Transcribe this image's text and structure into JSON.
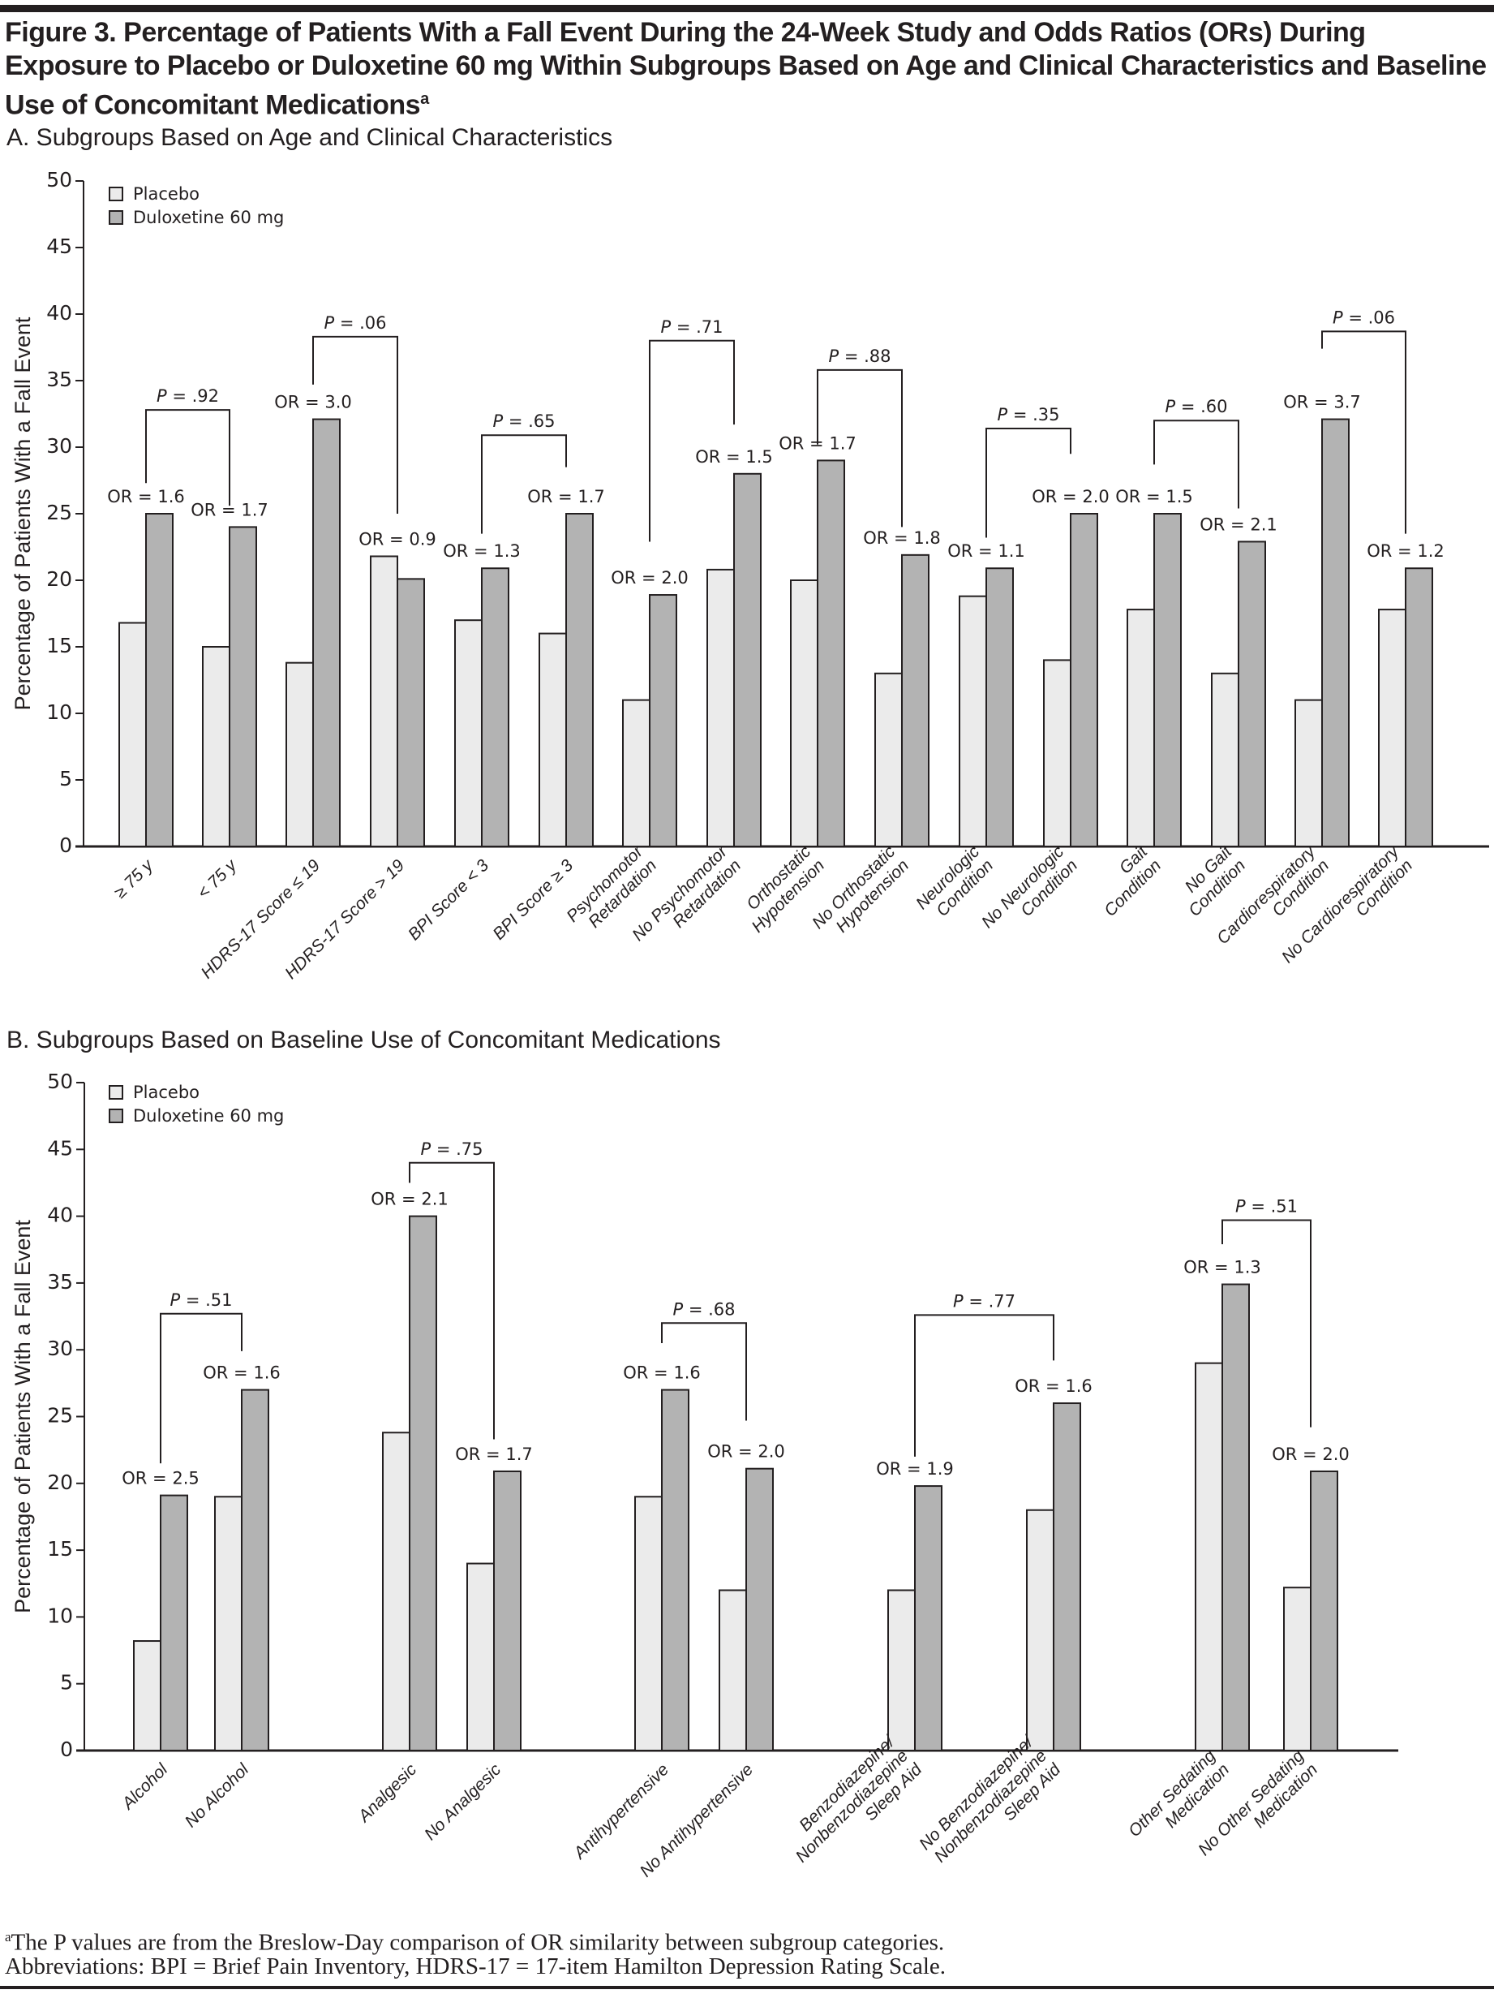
{
  "figure": {
    "title": "Figure 3. Percentage of Patients With a Fall Event During the 24-Week Study and Odds Ratios (ORs) During Exposure to Placebo or Duloxetine 60 mg Within Subgroups Based on Age and Clinical Characteristics and Baseline Use of Concomitant Medications",
    "title_sup": "a",
    "footnote_sup": "a",
    "footnote": "The P values are from the Breslow-Day comparison of OR similarity between subgroup categories.",
    "abbreviations": "Abbreviations: BPI = Brief Pain Inventory, HDRS-17 = 17-item Hamilton Depression Rating Scale."
  },
  "colors": {
    "placebo": "#ebebeb",
    "duloxetine": "#b3b3b3",
    "stroke": "#231f20"
  },
  "chart_data": [
    {
      "type": "bar",
      "title": "A. Subgroups Based on Age and Clinical Characteristics",
      "xlabel": "",
      "ylabel": "Percentage of Patients With a Fall Event",
      "ylim": [
        0,
        50
      ],
      "yticks": [
        0,
        5,
        10,
        15,
        20,
        25,
        30,
        35,
        40,
        45,
        50
      ],
      "grid": false,
      "legend": {
        "position": "top-left",
        "entries": [
          "Placebo",
          "Duloxetine 60 mg"
        ]
      },
      "categories": [
        [
          "≥ 75 y"
        ],
        [
          "< 75 y"
        ],
        [
          "HDRS-17 Score ≤ 19"
        ],
        [
          "HDRS-17 Score > 19"
        ],
        [
          "BPI Score < 3"
        ],
        [
          "BPI Score ≥ 3"
        ],
        [
          "Psychomotor",
          "Retardation"
        ],
        [
          "No Psychomotor",
          "Retardation"
        ],
        [
          "Orthostatic",
          "Hypotension"
        ],
        [
          "No Orthostatic",
          "Hypotension"
        ],
        [
          "Neurologic",
          "Condition"
        ],
        [
          "No Neurologic",
          "Condition"
        ],
        [
          "Gait",
          "Condition"
        ],
        [
          "No Gait",
          "Condition"
        ],
        [
          "Cardiorespiratory",
          "Condition"
        ],
        [
          "No Cardiorespiratory",
          "Condition"
        ]
      ],
      "series": [
        {
          "name": "Placebo",
          "values": [
            16.8,
            15.0,
            13.8,
            21.8,
            17.0,
            16.0,
            11.0,
            20.8,
            20.0,
            13.0,
            18.8,
            14.0,
            17.8,
            13.0,
            11.0,
            17.8
          ]
        },
        {
          "name": "Duloxetine 60 mg",
          "values": [
            25.0,
            24.0,
            32.1,
            20.1,
            20.9,
            25.0,
            18.9,
            28.0,
            29.0,
            21.9,
            20.9,
            25.0,
            25.0,
            22.9,
            32.1,
            20.9
          ]
        }
      ],
      "or_labels": [
        "OR = 1.6",
        "OR = 1.7",
        "OR = 3.0",
        "OR = 0.9",
        "OR = 1.3",
        "OR = 1.7",
        "OR = 2.0",
        "OR = 1.5",
        "OR = 1.7",
        "OR = 1.8",
        "OR = 1.1",
        "OR = 2.0",
        "OR = 1.5",
        "OR = 2.1",
        "OR = 3.7",
        "OR = 1.2"
      ],
      "comparisons": [
        {
          "pair": [
            0,
            1
          ],
          "label_prefix": "P",
          "label_value": " = .92",
          "level": 32.8,
          "left_drop": 27.3,
          "right_drop": 25.6
        },
        {
          "pair": [
            2,
            3
          ],
          "label_prefix": "P",
          "label_value": " = .06",
          "level": 38.3,
          "left_drop": 34.7,
          "right_drop": 25.0
        },
        {
          "pair": [
            4,
            5
          ],
          "label_prefix": "P",
          "label_value": " = .65",
          "level": 30.9,
          "left_drop": 23.5,
          "right_drop": 28.5
        },
        {
          "pair": [
            6,
            7
          ],
          "label_prefix": "P",
          "label_value": " = .71",
          "level": 38.0,
          "left_drop": 22.9,
          "right_drop": 31.7
        },
        {
          "pair": [
            8,
            9
          ],
          "label_prefix": "P",
          "label_value": " = .88",
          "level": 35.8,
          "left_drop": 30.2,
          "right_drop": 24.0
        },
        {
          "pair": [
            10,
            11
          ],
          "label_prefix": "P",
          "label_value": " = .35",
          "level": 31.4,
          "left_drop": 23.2,
          "right_drop": 29.5
        },
        {
          "pair": [
            12,
            13
          ],
          "label_prefix": "P",
          "label_value": " = .60",
          "level": 32.0,
          "left_drop": 28.7,
          "right_drop": 25.4
        },
        {
          "pair": [
            14,
            15
          ],
          "label_prefix": "P",
          "label_value": " = .06",
          "level": 38.7,
          "left_drop": 37.4,
          "right_drop": 23.5
        }
      ]
    },
    {
      "type": "bar",
      "title": "B. Subgroups Based on Baseline Use of Concomitant Medications",
      "xlabel": "",
      "ylabel": "Percentage of Patients With a Fall Event",
      "ylim": [
        0,
        50
      ],
      "yticks": [
        0,
        5,
        10,
        15,
        20,
        25,
        30,
        35,
        40,
        45,
        50
      ],
      "grid": false,
      "legend": {
        "position": "top-left",
        "entries": [
          "Placebo",
          "Duloxetine 60 mg"
        ]
      },
      "categories": [
        [
          "Alcohol"
        ],
        [
          "No Alcohol"
        ],
        [
          "Analgesic"
        ],
        [
          "No Analgesic"
        ],
        [
          "Antihypertensive"
        ],
        [
          "No Antihypertensive"
        ],
        [
          "Benzodiazepine/",
          "Nonbenzodiazepine",
          "Sleep Aid"
        ],
        [
          "No Benzodiazepine/",
          "Nonbenzodiazepine",
          "Sleep Aid"
        ],
        [
          "Other Sedating",
          "Medication"
        ],
        [
          "No Other Sedating",
          "Medication"
        ]
      ],
      "series": [
        {
          "name": "Placebo",
          "values": [
            8.2,
            19.0,
            23.8,
            14.0,
            19.0,
            12.0,
            12.0,
            18.0,
            29.0,
            12.2
          ]
        },
        {
          "name": "Duloxetine 60 mg",
          "values": [
            19.1,
            27.0,
            40.0,
            20.9,
            27.0,
            21.1,
            19.8,
            26.0,
            34.9,
            20.9
          ]
        }
      ],
      "or_labels": [
        "OR = 2.5",
        "OR = 1.6",
        "OR = 2.1",
        "OR = 1.7",
        "OR = 1.6",
        "OR = 2.0",
        "OR = 1.9",
        "OR = 1.6",
        "OR = 1.3",
        "OR = 2.0"
      ],
      "comparisons": [
        {
          "pair": [
            0,
            1
          ],
          "label_prefix": "P",
          "label_value": " = .51",
          "level": 32.7,
          "left_drop": 21.5,
          "right_drop": 29.9
        },
        {
          "pair": [
            2,
            3
          ],
          "label_prefix": "P",
          "label_value": " = .75",
          "level": 44.0,
          "left_drop": 42.5,
          "right_drop": 23.3
        },
        {
          "pair": [
            4,
            5
          ],
          "label_prefix": "P",
          "label_value": " = .68",
          "level": 32.0,
          "left_drop": 30.5,
          "right_drop": 24.7
        },
        {
          "pair": [
            6,
            7
          ],
          "label_prefix": "P",
          "label_value": " = .77",
          "level": 32.6,
          "left_drop": 22.0,
          "right_drop": 29.2
        },
        {
          "pair": [
            8,
            9
          ],
          "label_prefix": "P",
          "label_value": " = .51",
          "level": 39.7,
          "left_drop": 37.9,
          "right_drop": 24.2
        }
      ]
    }
  ]
}
